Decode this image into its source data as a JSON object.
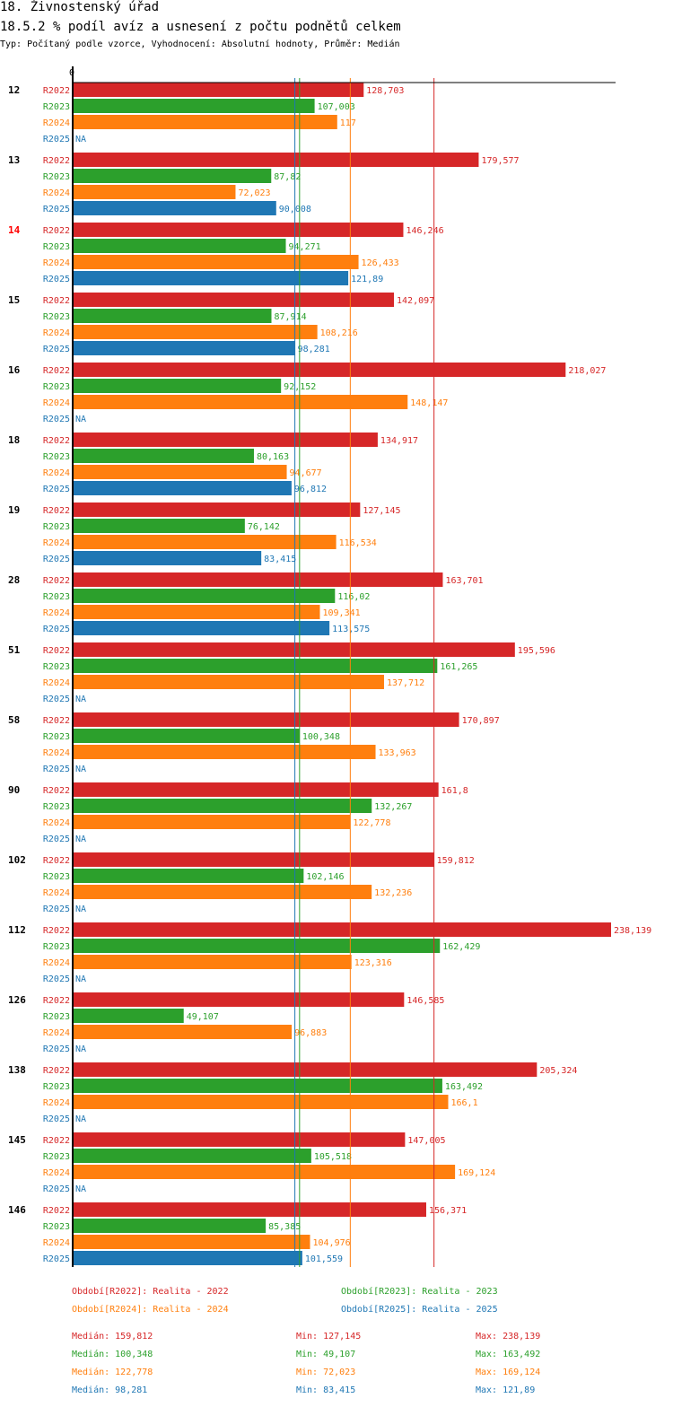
{
  "header": {
    "title": "18. Živnostenský úřad",
    "subtitle": "18.5.2 % podíl avíz a usnesení z počtu podnětů celkem",
    "meta": "Typ: Počítaný podle vzorce, Vyhodnocení: Absolutní hodnoty, Průměr: Medián"
  },
  "colors": {
    "R2022": "#d62728",
    "R2023": "#2ca02c",
    "R2024": "#ff7f0e",
    "R2025": "#1f77b4",
    "highlight_group": "#ff0000"
  },
  "chart_data": {
    "type": "bar",
    "orientation": "horizontal",
    "title": "18.5.2 % podíl avíz a usnesení z počtu podnětů celkem",
    "axis_origin_label": "0",
    "xlim": [
      0,
      238.139
    ],
    "highlighted_group": "14",
    "na_label": "NA",
    "series_names": [
      "R2022",
      "R2023",
      "R2024",
      "R2025"
    ],
    "groups": [
      {
        "label": "12",
        "values": [
          128.703,
          107.003,
          117,
          null
        ],
        "labels": [
          "128,703",
          "107,003",
          "117",
          "NA"
        ]
      },
      {
        "label": "13",
        "values": [
          179.577,
          87.82,
          72.023,
          90.008
        ],
        "labels": [
          "179,577",
          "87,82",
          "72,023",
          "90,008"
        ]
      },
      {
        "label": "14",
        "values": [
          146.246,
          94.271,
          126.433,
          121.89
        ],
        "labels": [
          "146,246",
          "94,271",
          "126,433",
          "121,89"
        ]
      },
      {
        "label": "15",
        "values": [
          142.097,
          87.914,
          108.216,
          98.281
        ],
        "labels": [
          "142,097",
          "87,914",
          "108,216",
          "98,281"
        ]
      },
      {
        "label": "16",
        "values": [
          218.027,
          92.152,
          148.147,
          null
        ],
        "labels": [
          "218,027",
          "92,152",
          "148,147",
          "NA"
        ]
      },
      {
        "label": "18",
        "values": [
          134.917,
          80.163,
          94.677,
          96.812
        ],
        "labels": [
          "134,917",
          "80,163",
          "94,677",
          "96,812"
        ]
      },
      {
        "label": "19",
        "values": [
          127.145,
          76.142,
          116.534,
          83.415
        ],
        "labels": [
          "127,145",
          "76,142",
          "116,534",
          "83,415"
        ]
      },
      {
        "label": "28",
        "values": [
          163.701,
          116.02,
          109.341,
          113.575
        ],
        "labels": [
          "163,701",
          "116,02",
          "109,341",
          "113,575"
        ]
      },
      {
        "label": "51",
        "values": [
          195.596,
          161.265,
          137.712,
          null
        ],
        "labels": [
          "195,596",
          "161,265",
          "137,712",
          "NA"
        ]
      },
      {
        "label": "58",
        "values": [
          170.897,
          100.348,
          133.963,
          null
        ],
        "labels": [
          "170,897",
          "100,348",
          "133,963",
          "NA"
        ]
      },
      {
        "label": "90",
        "values": [
          161.8,
          132.267,
          122.778,
          null
        ],
        "labels": [
          "161,8",
          "132,267",
          "122,778",
          "NA"
        ]
      },
      {
        "label": "102",
        "values": [
          159.812,
          102.146,
          132.236,
          null
        ],
        "labels": [
          "159,812",
          "102,146",
          "132,236",
          "NA"
        ]
      },
      {
        "label": "112",
        "values": [
          238.139,
          162.429,
          123.316,
          null
        ],
        "labels": [
          "238,139",
          "162,429",
          "123,316",
          "NA"
        ]
      },
      {
        "label": "126",
        "values": [
          146.585,
          49.107,
          96.883,
          null
        ],
        "labels": [
          "146,585",
          "49,107",
          "96,883",
          "NA"
        ]
      },
      {
        "label": "138",
        "values": [
          205.324,
          163.492,
          166.1,
          null
        ],
        "labels": [
          "205,324",
          "163,492",
          "166,1",
          "NA"
        ]
      },
      {
        "label": "145",
        "values": [
          147.005,
          105.518,
          169.124,
          null
        ],
        "labels": [
          "147,005",
          "105,518",
          "169,124",
          "NA"
        ]
      },
      {
        "label": "146",
        "values": [
          156.371,
          85.385,
          104.976,
          101.559
        ],
        "labels": [
          "156,371",
          "85,385",
          "104,976",
          "101,559"
        ]
      }
    ],
    "median_lines": [
      159.812,
      100.348,
      122.778,
      98.281
    ]
  },
  "legend": {
    "periods": [
      {
        "key": "R2022",
        "text": "Období[R2022]: Realita - 2022"
      },
      {
        "key": "R2023",
        "text": "Období[R2023]: Realita - 2023"
      },
      {
        "key": "R2024",
        "text": "Období[R2024]: Realita - 2024"
      },
      {
        "key": "R2025",
        "text": "Období[R2025]: Realita - 2025"
      }
    ],
    "stats": [
      {
        "key": "R2022",
        "median": "Medián: 159,812",
        "min": "Min: 127,145",
        "max": "Max: 238,139"
      },
      {
        "key": "R2023",
        "median": "Medián: 100,348",
        "min": "Min: 49,107",
        "max": "Max: 163,492"
      },
      {
        "key": "R2024",
        "median": "Medián: 122,778",
        "min": "Min: 72,023",
        "max": "Max: 169,124"
      },
      {
        "key": "R2025",
        "median": "Medián: 98,281",
        "min": "Min: 83,415",
        "max": "Max: 121,89"
      }
    ]
  }
}
